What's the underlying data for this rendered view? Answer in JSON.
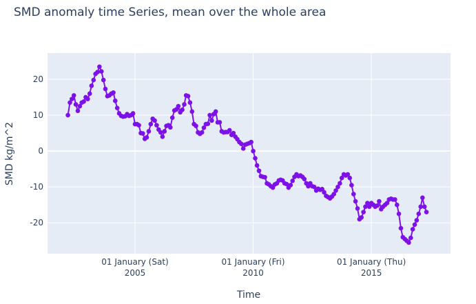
{
  "chart_data": {
    "type": "line",
    "title": "SMD anomaly time Series, mean over the whole area",
    "x_label": "Time",
    "y_label": "SMD kg/m^2",
    "color": "#7e11e7",
    "grid": true,
    "markers": true,
    "xlim": [
      "2001-04-20",
      "2018-05-08"
    ],
    "xticks": [
      {
        "value": "2005-01-01",
        "label": [
          "01 January (Sat)",
          "2005"
        ]
      },
      {
        "value": "2010-01-01",
        "label": [
          "01 January (Fri)",
          "2010"
        ]
      },
      {
        "value": "2015-01-01",
        "label": [
          "01 January (Thu)",
          "2015"
        ]
      }
    ],
    "ylim": [
      -28.6,
      27.3
    ],
    "yticks": [
      -20,
      -10,
      0,
      10,
      20
    ],
    "x": [
      "2002-03",
      "2002-04",
      "2002-05",
      "2002-06",
      "2002-07",
      "2002-08",
      "2002-09",
      "2002-10",
      "2002-11",
      "2002-12",
      "2003-01",
      "2003-02",
      "2003-03",
      "2003-04",
      "2003-05",
      "2003-06",
      "2003-07",
      "2003-08",
      "2003-09",
      "2003-10",
      "2003-11",
      "2003-12",
      "2004-01",
      "2004-02",
      "2004-03",
      "2004-04",
      "2004-05",
      "2004-06",
      "2004-07",
      "2004-08",
      "2004-09",
      "2004-10",
      "2004-11",
      "2004-12",
      "2005-01",
      "2005-02",
      "2005-03",
      "2005-04",
      "2005-05",
      "2005-06",
      "2005-07",
      "2005-08",
      "2005-09",
      "2005-10",
      "2005-11",
      "2005-12",
      "2006-01",
      "2006-02",
      "2006-03",
      "2006-04",
      "2006-05",
      "2006-06",
      "2006-07",
      "2006-08",
      "2006-09",
      "2006-10",
      "2006-11",
      "2006-12",
      "2007-01",
      "2007-02",
      "2007-03",
      "2007-04",
      "2007-05",
      "2007-06",
      "2007-07",
      "2007-08",
      "2007-09",
      "2007-10",
      "2007-11",
      "2007-12",
      "2008-01",
      "2008-02",
      "2008-03",
      "2008-04",
      "2008-05",
      "2008-06",
      "2008-07",
      "2008-08",
      "2008-09",
      "2008-10",
      "2008-11",
      "2008-12",
      "2009-01",
      "2009-02",
      "2009-03",
      "2009-04",
      "2009-05",
      "2009-06",
      "2009-07",
      "2009-08",
      "2009-09",
      "2009-10",
      "2009-11",
      "2009-12",
      "2010-01",
      "2010-02",
      "2010-03",
      "2010-04",
      "2010-05",
      "2010-06",
      "2010-07",
      "2010-08",
      "2010-09",
      "2010-10",
      "2010-11",
      "2010-12",
      "2011-01",
      "2011-02",
      "2011-03",
      "2011-04",
      "2011-05",
      "2011-06",
      "2011-07",
      "2011-08",
      "2011-09",
      "2011-10",
      "2011-11",
      "2011-12",
      "2012-01",
      "2012-02",
      "2012-03",
      "2012-04",
      "2012-05",
      "2012-06",
      "2012-07",
      "2012-08",
      "2012-09",
      "2012-10",
      "2012-11",
      "2012-12",
      "2013-01",
      "2013-02",
      "2013-03",
      "2013-04",
      "2013-05",
      "2013-06",
      "2013-07",
      "2013-08",
      "2013-09",
      "2013-10",
      "2013-11",
      "2013-12",
      "2014-01",
      "2014-02",
      "2014-03",
      "2014-04",
      "2014-05",
      "2014-06",
      "2014-07",
      "2014-08",
      "2014-09",
      "2014-10",
      "2014-11",
      "2014-12",
      "2015-01",
      "2015-02",
      "2015-03",
      "2015-04",
      "2015-05",
      "2015-06",
      "2015-07",
      "2015-08",
      "2015-09",
      "2015-10",
      "2015-11",
      "2015-12",
      "2016-01",
      "2016-02",
      "2016-03",
      "2016-04",
      "2016-05",
      "2016-06",
      "2016-07",
      "2016-08",
      "2016-09",
      "2016-10",
      "2016-11",
      "2016-12",
      "2017-01",
      "2017-02",
      "2017-03",
      "2017-04",
      "2017-05"
    ],
    "values": [
      10,
      13.5,
      14.5,
      15.5,
      13,
      11.2,
      12.5,
      13.5,
      13.8,
      15,
      14.5,
      16,
      18.2,
      19.8,
      21.5,
      22,
      23.5,
      22.2,
      19.8,
      17.3,
      15.3,
      15.5,
      16,
      16.3,
      14,
      12,
      10.5,
      9.8,
      9.6,
      9.7,
      10.3,
      9.8,
      10,
      10.5,
      7.5,
      7.5,
      7.2,
      5,
      4.9,
      3.4,
      3.8,
      5.5,
      7.5,
      9,
      8.5,
      7.2,
      6,
      5.2,
      4,
      5.5,
      7,
      7.2,
      6.6,
      9.3,
      11.3,
      11.6,
      12.5,
      10.8,
      11.5,
      13,
      15.5,
      15.3,
      13.5,
      11,
      7.5,
      7,
      5.2,
      4.8,
      5.2,
      6.5,
      7.5,
      7.6,
      10,
      8.5,
      10.3,
      11,
      8,
      8,
      5.5,
      5.2,
      5.3,
      5.3,
      5.8,
      4.5,
      5,
      4,
      3.3,
      2.5,
      2,
      0.7,
      1.8,
      2,
      2.2,
      2.5,
      0,
      -2,
      -4,
      -5.5,
      -7,
      -7.2,
      -7.3,
      -9,
      -9.3,
      -9.8,
      -10.2,
      -9.3,
      -9,
      -8.2,
      -8,
      -8.2,
      -9,
      -9.2,
      -10.2,
      -9.5,
      -8.3,
      -7.2,
      -6.5,
      -7,
      -6.8,
      -7.2,
      -7.8,
      -9,
      -9.8,
      -9,
      -9.8,
      -10,
      -11,
      -10.5,
      -10.8,
      -10.6,
      -11.5,
      -12.5,
      -12.8,
      -13.2,
      -12.7,
      -12,
      -11,
      -10,
      -9,
      -7.5,
      -6.5,
      -6.8,
      -6.5,
      -7.5,
      -9.5,
      -12,
      -14,
      -16,
      -19,
      -18.5,
      -17,
      -15.5,
      -14.5,
      -15.5,
      -14.5,
      -15,
      -15.5,
      -15.2,
      -14,
      -16.2,
      -15.5,
      -15,
      -14.5,
      -13.5,
      -13.3,
      -13.5,
      -13.5,
      -15,
      -17.5,
      -21.5,
      -24,
      -24.5,
      -25,
      -25.5,
      -24.2,
      -21.8,
      -20.5,
      -19.3,
      -17.5,
      -15.5,
      -13,
      -15.5,
      -17
    ]
  }
}
